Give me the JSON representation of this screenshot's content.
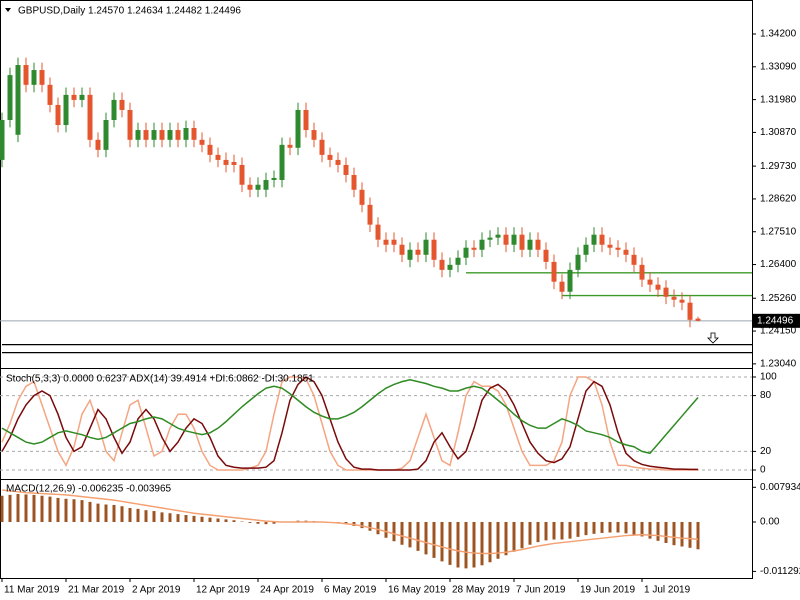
{
  "chart_data": [
    {
      "type": "candlestick",
      "title": "GBPUSD,Daily  1.24570 1.24634 1.24482 1.24496",
      "categories": [
        "11 Mar 2019",
        null,
        null,
        null,
        null,
        null,
        null,
        null,
        "21 Mar 2019",
        null,
        null,
        null,
        null,
        null,
        null,
        null,
        "2 Apr 2019",
        null,
        null,
        null,
        null,
        null,
        null,
        null,
        "12 Apr 2019",
        null,
        null,
        null,
        null,
        null,
        null,
        null,
        "24 Apr 2019",
        null,
        null,
        null,
        null,
        null,
        null,
        null,
        "6 May 2019",
        null,
        null,
        null,
        null,
        null,
        null,
        null,
        "16 May 2019",
        null,
        null,
        null,
        null,
        null,
        null,
        null,
        "28 May 2019",
        null,
        null,
        null,
        null,
        null,
        null,
        null,
        "7 Jun 2019",
        null,
        null,
        null,
        null,
        null,
        null,
        null,
        "19 Jun 2019",
        null,
        null,
        null,
        null,
        null,
        null,
        null,
        "1 Jul 2019",
        null,
        null,
        null,
        null,
        null,
        null,
        null
      ],
      "ohlc": [
        [
          1.2994,
          1.3154,
          1.2969,
          1.3129
        ],
        [
          1.3129,
          1.3306,
          1.3104,
          1.3281
        ],
        [
          1.3079,
          1.334,
          1.3054,
          1.3315
        ],
        [
          1.3315,
          1.334,
          1.3223,
          1.3248
        ],
        [
          1.3248,
          1.3323,
          1.3223,
          1.3298
        ],
        [
          1.3298,
          1.3323,
          1.3223,
          1.3248
        ],
        [
          1.3248,
          1.3273,
          1.3155,
          1.318
        ],
        [
          1.318,
          1.3205,
          1.3087,
          1.3112
        ],
        [
          1.3112,
          1.3239,
          1.3087,
          1.3214
        ],
        [
          1.3214,
          1.3239,
          1.3172,
          1.3197
        ],
        [
          1.3197,
          1.3239,
          1.3172,
          1.3214
        ],
        [
          1.3214,
          1.3239,
          1.3037,
          1.3062
        ],
        [
          1.3062,
          1.3087,
          1.3003,
          1.3028
        ],
        [
          1.3028,
          1.3154,
          1.3003,
          1.3129
        ],
        [
          1.3129,
          1.3222,
          1.3104,
          1.3197
        ],
        [
          1.3197,
          1.3222,
          1.3138,
          1.3163
        ],
        [
          1.3163,
          1.3188,
          1.3037,
          1.3062
        ],
        [
          1.3062,
          1.312,
          1.3037,
          1.3095
        ],
        [
          1.3095,
          1.312,
          1.3037,
          1.3062
        ],
        [
          1.3062,
          1.312,
          1.3037,
          1.3095
        ],
        [
          1.3095,
          1.312,
          1.3037,
          1.3062
        ],
        [
          1.3062,
          1.312,
          1.3037,
          1.3095
        ],
        [
          1.3095,
          1.312,
          1.3037,
          1.3062
        ],
        [
          1.3062,
          1.3127,
          1.3037,
          1.3102
        ],
        [
          1.3102,
          1.3127,
          1.3037,
          1.3062
        ],
        [
          1.3062,
          1.3087,
          1.302,
          1.3045
        ],
        [
          1.3045,
          1.307,
          1.2986,
          1.3011
        ],
        [
          1.3011,
          1.3036,
          1.2969,
          1.2994
        ],
        [
          1.2994,
          1.3019,
          1.2952,
          1.2977
        ],
        [
          1.2987,
          1.3012,
          1.2952,
          1.2977
        ],
        [
          1.2977,
          1.3002,
          1.2885,
          1.291
        ],
        [
          1.291,
          1.2935,
          1.2868,
          1.2893
        ],
        [
          1.2893,
          1.2935,
          1.2868,
          1.291
        ],
        [
          1.2893,
          1.2951,
          1.2868,
          1.2926
        ],
        [
          1.2926,
          1.2958,
          1.2901,
          1.2933
        ],
        [
          1.2926,
          1.307,
          1.2901,
          1.3045
        ],
        [
          1.3045,
          1.307,
          1.301,
          1.3035
        ],
        [
          1.3035,
          1.3188,
          1.301,
          1.3163
        ],
        [
          1.3163,
          1.3188,
          1.307,
          1.3095
        ],
        [
          1.3095,
          1.312,
          1.3037,
          1.3062
        ],
        [
          1.3062,
          1.3087,
          1.2986,
          1.3011
        ],
        [
          1.3011,
          1.3036,
          1.2969,
          1.2994
        ],
        [
          1.2994,
          1.3019,
          1.2952,
          1.2977
        ],
        [
          1.2977,
          1.3002,
          1.2918,
          1.2943
        ],
        [
          1.2943,
          1.2968,
          1.2868,
          1.2893
        ],
        [
          1.2893,
          1.2918,
          1.2817,
          1.2842
        ],
        [
          1.2842,
          1.2867,
          1.275,
          1.2775
        ],
        [
          1.2775,
          1.28,
          1.2699,
          1.2724
        ],
        [
          1.2724,
          1.2749,
          1.2682,
          1.2707
        ],
        [
          1.2724,
          1.2749,
          1.2682,
          1.2707
        ],
        [
          1.2707,
          1.2732,
          1.2648,
          1.2673
        ],
        [
          1.2656,
          1.2715,
          1.2631,
          1.269
        ],
        [
          1.269,
          1.2715,
          1.2648,
          1.2673
        ],
        [
          1.2673,
          1.2749,
          1.2648,
          1.2724
        ],
        [
          1.2724,
          1.2749,
          1.2631,
          1.2656
        ],
        [
          1.2656,
          1.2681,
          1.2597,
          1.2622
        ],
        [
          1.2622,
          1.2664,
          1.2597,
          1.2639
        ],
        [
          1.2639,
          1.2688,
          1.2614,
          1.2663
        ],
        [
          1.2663,
          1.2722,
          1.2638,
          1.2697
        ],
        [
          1.2697,
          1.2722,
          1.2665,
          1.269
        ],
        [
          1.269,
          1.2749,
          1.2665,
          1.2724
        ],
        [
          1.2724,
          1.2756,
          1.2699,
          1.2731
        ],
        [
          1.2731,
          1.2766,
          1.2706,
          1.2741
        ],
        [
          1.2741,
          1.2766,
          1.2682,
          1.2707
        ],
        [
          1.2707,
          1.2766,
          1.2682,
          1.2741
        ],
        [
          1.2741,
          1.2766,
          1.2665,
          1.269
        ],
        [
          1.269,
          1.2749,
          1.2665,
          1.2724
        ],
        [
          1.2724,
          1.2749,
          1.2665,
          1.269
        ],
        [
          1.269,
          1.2715,
          1.2624,
          1.2649
        ],
        [
          1.2649,
          1.2674,
          1.2557,
          1.2582
        ],
        [
          1.2582,
          1.2607,
          1.2523,
          1.2548
        ],
        [
          1.2548,
          1.2647,
          1.2523,
          1.2622
        ],
        [
          1.2622,
          1.2698,
          1.2597,
          1.2673
        ],
        [
          1.2673,
          1.2732,
          1.2648,
          1.2707
        ],
        [
          1.2707,
          1.2766,
          1.2682,
          1.2741
        ],
        [
          1.2741,
          1.2766,
          1.2682,
          1.2707
        ],
        [
          1.2707,
          1.2732,
          1.2672,
          1.2697
        ],
        [
          1.2697,
          1.2722,
          1.2665,
          1.269
        ],
        [
          1.269,
          1.2715,
          1.2648,
          1.2673
        ],
        [
          1.2673,
          1.2698,
          1.2614,
          1.2639
        ],
        [
          1.2639,
          1.2664,
          1.2564,
          1.2589
        ],
        [
          1.2589,
          1.2614,
          1.2547,
          1.2572
        ],
        [
          1.2572,
          1.2597,
          1.253,
          1.2555
        ],
        [
          1.2562,
          1.2587,
          1.2506,
          1.2531
        ],
        [
          1.2531,
          1.2556,
          1.2496,
          1.2521
        ],
        [
          1.2521,
          1.2546,
          1.2486,
          1.2511
        ],
        [
          1.2511,
          1.2536,
          1.2428,
          1.2453
        ],
        [
          1.2457,
          1.24634,
          1.24482,
          1.24496
        ]
      ],
      "up_color": "#2f8a2f",
      "down_color": "#e4572e",
      "ylim": [
        1.229,
        1.3535
      ],
      "yticks": [
        {
          "value": 1.342,
          "label": "1.34200"
        },
        {
          "value": 1.3309,
          "label": "1.33090"
        },
        {
          "value": 1.3198,
          "label": "1.31980"
        },
        {
          "value": 1.3087,
          "label": "1.30870"
        },
        {
          "value": 1.2973,
          "label": "1.29730"
        },
        {
          "value": 1.2862,
          "label": "1.28620"
        },
        {
          "value": 1.2751,
          "label": "1.27510"
        },
        {
          "value": 1.264,
          "label": "1.26400"
        },
        {
          "value": 1.2526,
          "label": "1.25260"
        },
        {
          "value": 1.2415,
          "label": "1.24150"
        },
        {
          "value": 1.2304,
          "label": "1.23040"
        }
      ],
      "levels": [
        {
          "value": 1.2612,
          "color": "#3c9a28",
          "from": 58
        },
        {
          "value": 1.2535,
          "color": "#3c9a28",
          "from": 70
        },
        {
          "value": 1.2369,
          "color": "#000000",
          "from": 0
        },
        {
          "value": 1.2342,
          "color": "#000000",
          "from": 0
        }
      ],
      "last_price": {
        "value": 1.24496,
        "label": "1.24496"
      }
    },
    {
      "type": "line",
      "title": "Stoch(5,3,3) 0.0000 0.6237  ADX(14) 39.4914 +DI:6.0862 -DI:30.1851",
      "series": [
        {
          "color": "#f4a582",
          "values": [
            30,
            50,
            75,
            90,
            95,
            70,
            45,
            20,
            5,
            25,
            60,
            75,
            50,
            20,
            10,
            40,
            70,
            75,
            45,
            15,
            20,
            45,
            60,
            60,
            45,
            20,
            5,
            0,
            0,
            0,
            0,
            2,
            5,
            20,
            60,
            95,
            100,
            100,
            98,
            80,
            50,
            20,
            5,
            0,
            0,
            0,
            0,
            0,
            0,
            0,
            2,
            10,
            35,
            60,
            35,
            10,
            5,
            40,
            80,
            95,
            90,
            90,
            85,
            70,
            45,
            20,
            5,
            5,
            5,
            10,
            30,
            80,
            100,
            100,
            95,
            70,
            30,
            5,
            5,
            3,
            2,
            1,
            1,
            0,
            0,
            0,
            0,
            0
          ]
        },
        {
          "color": "#7a0a0a",
          "values": [
            20,
            35,
            55,
            70,
            80,
            85,
            80,
            60,
            35,
            20,
            25,
            45,
            65,
            55,
            35,
            18,
            30,
            55,
            65,
            55,
            35,
            20,
            30,
            45,
            55,
            50,
            35,
            15,
            5,
            3,
            2,
            2,
            2,
            3,
            10,
            40,
            75,
            92,
            100,
            95,
            80,
            55,
            30,
            12,
            3,
            1,
            1,
            0,
            0,
            0,
            0,
            0,
            1,
            10,
            30,
            40,
            25,
            12,
            20,
            45,
            75,
            88,
            92,
            85,
            70,
            50,
            30,
            18,
            10,
            8,
            12,
            25,
            55,
            85,
            95,
            90,
            70,
            40,
            18,
            10,
            6,
            4,
            3,
            2,
            1,
            1,
            0.6237,
            0.6237
          ]
        },
        {
          "color": "#2e8b22",
          "values": [
            45,
            40,
            35,
            30,
            28,
            30,
            35,
            40,
            42,
            40,
            38,
            35,
            33,
            35,
            40,
            45,
            50,
            52,
            55,
            57,
            55,
            50,
            45,
            42,
            40,
            38,
            40,
            45,
            52,
            60,
            68,
            75,
            82,
            88,
            90,
            88,
            82,
            75,
            68,
            62,
            58,
            55,
            55,
            58,
            62,
            68,
            75,
            82,
            88,
            92,
            95,
            97,
            95,
            93,
            90,
            88,
            85,
            85,
            88,
            90,
            88,
            82,
            75,
            68,
            60,
            53,
            48,
            45,
            45,
            50,
            55,
            52,
            48,
            42,
            40,
            38,
            35,
            30,
            27,
            25,
            20,
            18,
            28,
            38,
            48,
            58,
            68,
            78
          ]
        }
      ],
      "ylim": [
        -8.6,
        108.6
      ],
      "yticks": [
        0,
        20,
        80,
        100
      ],
      "grid": true
    },
    {
      "type": "bar",
      "title": "MACD(12,26,9) -0.006235 -0.003965",
      "series": [
        {
          "type": "bar",
          "color": "#9c5422",
          "values": [
            0.006,
            0.0062,
            0.0064,
            0.0063,
            0.0062,
            0.006,
            0.0058,
            0.0055,
            0.0053,
            0.0052,
            0.005,
            0.0046,
            0.0042,
            0.004,
            0.0039,
            0.0036,
            0.0032,
            0.003,
            0.0027,
            0.0025,
            0.0022,
            0.002,
            0.0018,
            0.0016,
            0.0014,
            0.0012,
            0.001,
            0.0008,
            0.0006,
            0.0004,
            0.0001,
            -0.0002,
            -0.0004,
            -0.0005,
            -0.0004,
            -0.0001,
            0.0001,
            0.0003,
            0.0003,
            0.0002,
            0.0001,
            0,
            -0.0002,
            -0.0005,
            -0.0009,
            -0.0014,
            -0.002,
            -0.0028,
            -0.0036,
            -0.0044,
            -0.0052,
            -0.0058,
            -0.0066,
            -0.0074,
            -0.0082,
            -0.009,
            -0.0098,
            -0.0104,
            -0.0106,
            -0.0104,
            -0.0099,
            -0.0092,
            -0.0084,
            -0.0076,
            -0.0068,
            -0.006,
            -0.0052,
            -0.0046,
            -0.0042,
            -0.004,
            -0.004,
            -0.0038,
            -0.0034,
            -0.003,
            -0.0027,
            -0.0025,
            -0.0024,
            -0.0024,
            -0.0026,
            -0.0029,
            -0.0033,
            -0.0038,
            -0.0043,
            -0.0048,
            -0.0053,
            -0.0056,
            -0.0059,
            -0.006235
          ]
        },
        {
          "type": "line",
          "color": "#f4a070",
          "values": [
            0.0073,
            0.0071,
            0.0069,
            0.0067,
            0.0066,
            0.0065,
            0.0064,
            0.0063,
            0.0062,
            0.006,
            0.0058,
            0.0056,
            0.0054,
            0.0052,
            0.005,
            0.0047,
            0.0044,
            0.0041,
            0.0038,
            0.0035,
            0.0032,
            0.0029,
            0.0026,
            0.0023,
            0.002,
            0.0018,
            0.0016,
            0.0014,
            0.0012,
            0.001,
            0.0008,
            0.0006,
            0.0004,
            0.0002,
            0.0001,
            0,
            0,
            0,
            0,
            0,
            0,
            -0.0001,
            -0.0002,
            -0.0004,
            -0.0006,
            -0.0009,
            -0.0013,
            -0.0017,
            -0.0022,
            -0.0027,
            -0.0032,
            -0.0037,
            -0.0042,
            -0.0047,
            -0.0052,
            -0.0057,
            -0.0062,
            -0.0066,
            -0.0069,
            -0.0071,
            -0.0072,
            -0.0072,
            -0.0071,
            -0.0069,
            -0.0066,
            -0.0063,
            -0.0059,
            -0.0055,
            -0.0052,
            -0.0049,
            -0.0047,
            -0.0045,
            -0.0043,
            -0.0041,
            -0.0039,
            -0.0037,
            -0.0035,
            -0.0033,
            -0.0031,
            -0.003,
            -0.0029,
            -0.003,
            -0.0031,
            -0.0033,
            -0.0035,
            -0.0037,
            -0.0038,
            -0.003965
          ]
        }
      ],
      "ylim": [
        -0.0128,
        0.0096
      ],
      "yticks": [
        0.007934,
        {
          "value": 0,
          "label": "0.00"
        },
        -0.011292
      ]
    }
  ]
}
